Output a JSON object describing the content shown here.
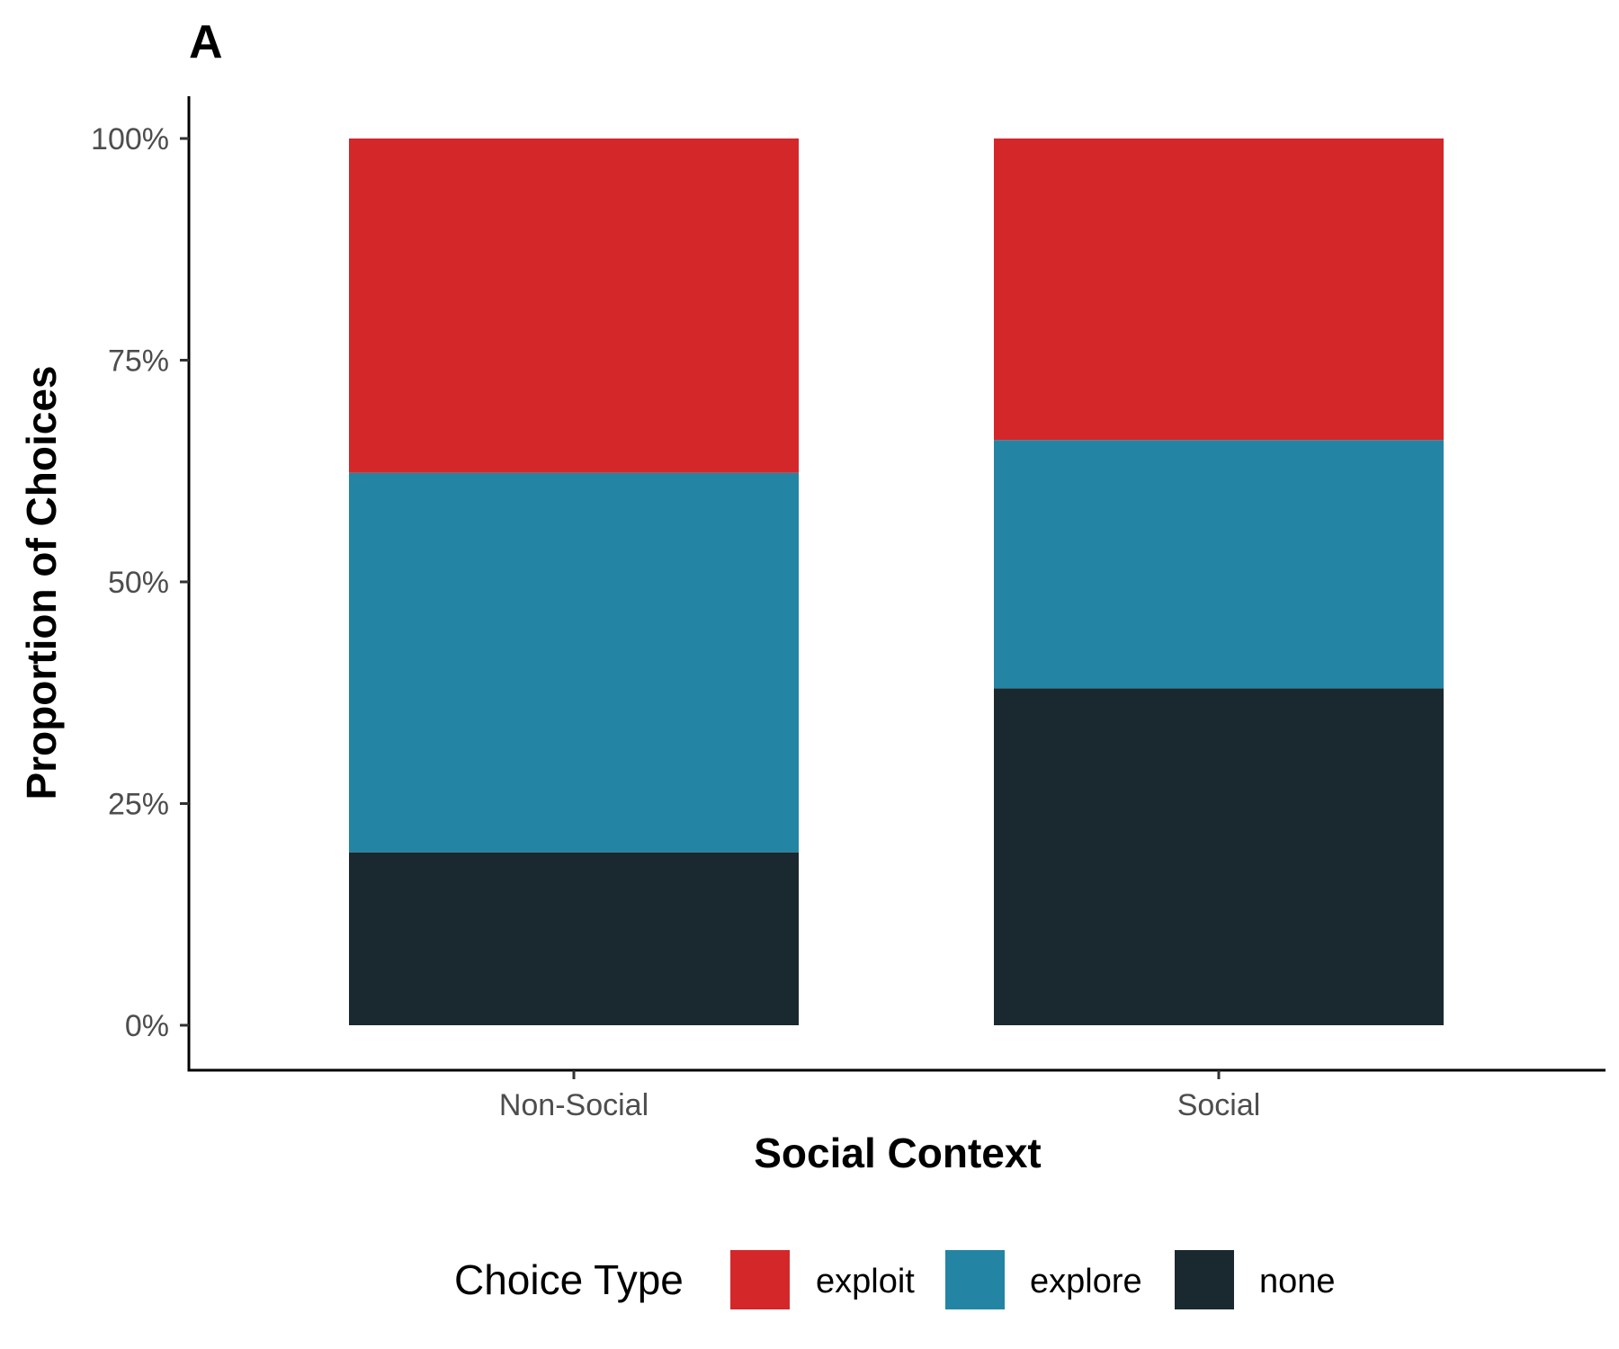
{
  "chart_data": {
    "type": "bar",
    "stacked": true,
    "panel_label": "A",
    "xlabel": "Social Context",
    "ylabel": "Proportion of Choices",
    "categories": [
      "Non-Social",
      "Social"
    ],
    "ylim": [
      0,
      1
    ],
    "yticks": [
      0,
      0.25,
      0.5,
      0.75,
      1.0
    ],
    "ytick_labels": [
      "0%",
      "25%",
      "50%",
      "75%",
      "100%"
    ],
    "series": [
      {
        "name": "none",
        "values": [
          0.195,
          0.38
        ],
        "color": "#1a292f"
      },
      {
        "name": "explore",
        "values": [
          0.428,
          0.28
        ],
        "color": "#2385a3"
      },
      {
        "name": "exploit",
        "values": [
          0.377,
          0.34
        ],
        "color": "#d4272a"
      }
    ],
    "legend": {
      "title": "Choice Type",
      "position": "bottom",
      "order": [
        "exploit",
        "explore",
        "none"
      ]
    },
    "grid": false
  }
}
